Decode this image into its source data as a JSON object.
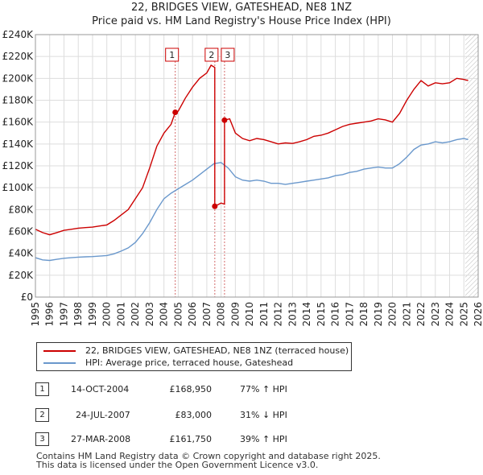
{
  "chart_data": {
    "type": "line",
    "title": "22, BRIDGES VIEW, GATESHEAD, NE8 1NZ",
    "subtitle": "Price paid vs. HM Land Registry's House Price Index (HPI)",
    "xlim": [
      1995,
      2026
    ],
    "ylim": [
      0,
      240000
    ],
    "x_ticks": [
      "1995",
      "1996",
      "1997",
      "1998",
      "1999",
      "2000",
      "2001",
      "2002",
      "2003",
      "2004",
      "2005",
      "2006",
      "2007",
      "2008",
      "2009",
      "2010",
      "2011",
      "2012",
      "2013",
      "2014",
      "2015",
      "2016",
      "2017",
      "2018",
      "2019",
      "2020",
      "2021",
      "2022",
      "2023",
      "2024",
      "2025",
      "2026"
    ],
    "y_ticks": [
      {
        "value": 0,
        "label": "£0"
      },
      {
        "value": 20000,
        "label": "£20K"
      },
      {
        "value": 40000,
        "label": "£40K"
      },
      {
        "value": 60000,
        "label": "£60K"
      },
      {
        "value": 80000,
        "label": "£80K"
      },
      {
        "value": 100000,
        "label": "£100K"
      },
      {
        "value": 120000,
        "label": "£120K"
      },
      {
        "value": 140000,
        "label": "£140K"
      },
      {
        "value": 160000,
        "label": "£160K"
      },
      {
        "value": 180000,
        "label": "£180K"
      },
      {
        "value": 200000,
        "label": "£200K"
      },
      {
        "value": 220000,
        "label": "£220K"
      },
      {
        "value": 240000,
        "label": "£240K"
      }
    ],
    "grid": true,
    "future_hatch_start": 2025.1,
    "series": [
      {
        "name": "22, BRIDGES VIEW, GATESHEAD, NE8 1NZ (terraced house)",
        "color": "#cc0000",
        "x": [
          1995,
          1995.5,
          1996,
          1996.5,
          1997,
          1997.5,
          1998,
          1998.5,
          1999,
          1999.5,
          2000,
          2000.5,
          2001,
          2001.5,
          2002,
          2002.5,
          2003,
          2003.5,
          2004,
          2004.5,
          2004.79,
          2004.79,
          2005,
          2005.5,
          2006,
          2006.5,
          2007,
          2007.3,
          2007.56,
          2007.56,
          2008,
          2008.24,
          2008.24,
          2008.6,
          2009,
          2009.5,
          2010,
          2010.5,
          2011,
          2011.5,
          2012,
          2012.5,
          2013,
          2013.5,
          2014,
          2014.5,
          2015,
          2015.5,
          2016,
          2016.5,
          2017,
          2017.5,
          2018,
          2018.5,
          2019,
          2019.5,
          2020,
          2020.5,
          2021,
          2021.5,
          2022,
          2022.5,
          2023,
          2023.5,
          2024,
          2024.5,
          2025,
          2025.3
        ],
        "y": [
          62000,
          59000,
          57000,
          59000,
          61000,
          62000,
          63000,
          63500,
          64000,
          65000,
          66000,
          70000,
          75000,
          80000,
          90000,
          100000,
          118000,
          138000,
          150000,
          158000,
          168950,
          168950,
          170000,
          182000,
          192000,
          200000,
          205000,
          212000,
          210000,
          83000,
          86000,
          85000,
          161750,
          163000,
          150000,
          145000,
          143000,
          145000,
          144000,
          142000,
          140000,
          141000,
          140500,
          142000,
          144000,
          147000,
          148000,
          150000,
          153000,
          156000,
          158000,
          159000,
          160000,
          161000,
          163000,
          162000,
          160000,
          168000,
          180000,
          190000,
          198000,
          193000,
          196000,
          195000,
          196000,
          200000,
          199000,
          198000
        ]
      },
      {
        "name": "HPI: Average price, terraced house, Gateshead",
        "color": "#6a98cc",
        "x": [
          1995,
          1995.5,
          1996,
          1996.5,
          1997,
          1997.5,
          1998,
          1998.5,
          1999,
          1999.5,
          2000,
          2000.5,
          2001,
          2001.5,
          2002,
          2002.5,
          2003,
          2003.5,
          2004,
          2004.5,
          2005,
          2005.5,
          2006,
          2006.5,
          2007,
          2007.5,
          2008,
          2008.5,
          2009,
          2009.5,
          2010,
          2010.5,
          2011,
          2011.5,
          2012,
          2012.5,
          2013,
          2013.5,
          2014,
          2014.5,
          2015,
          2015.5,
          2016,
          2016.5,
          2017,
          2017.5,
          2018,
          2018.5,
          2019,
          2019.5,
          2020,
          2020.5,
          2021,
          2021.5,
          2022,
          2022.5,
          2023,
          2023.5,
          2024,
          2024.5,
          2025,
          2025.3
        ],
        "y": [
          36000,
          34000,
          33500,
          34500,
          35500,
          36000,
          36500,
          36800,
          37000,
          37500,
          38000,
          39500,
          42000,
          45000,
          50000,
          58000,
          68000,
          80000,
          90000,
          95000,
          99000,
          103000,
          107000,
          112000,
          117000,
          122000,
          123000,
          118000,
          110000,
          107000,
          106000,
          107000,
          106000,
          104000,
          104000,
          103000,
          104000,
          105000,
          106000,
          107000,
          108000,
          109000,
          111000,
          112000,
          114000,
          115000,
          117000,
          118000,
          119000,
          118000,
          118000,
          122000,
          128000,
          135000,
          139000,
          140000,
          142000,
          141000,
          142000,
          144000,
          145000,
          144000
        ]
      }
    ],
    "markers": [
      {
        "label": "1",
        "x": 2004.79,
        "y": 168950
      },
      {
        "label": "2",
        "x": 2007.56,
        "y": 83000
      },
      {
        "label": "3",
        "x": 2008.24,
        "y": 161750
      }
    ]
  },
  "legend": {
    "red_label": "22, BRIDGES VIEW, GATESHEAD, NE8 1NZ (terraced house)",
    "blue_label": "HPI: Average price, terraced house, Gateshead"
  },
  "transactions": [
    {
      "num": "1",
      "date": "14-OCT-2004",
      "price": "£168,950",
      "hpi": "77% ↑ HPI"
    },
    {
      "num": "2",
      "date": "24-JUL-2007",
      "price": "£83,000",
      "hpi": "31% ↓ HPI"
    },
    {
      "num": "3",
      "date": "27-MAR-2008",
      "price": "£161,750",
      "hpi": "39% ↑ HPI"
    }
  ],
  "footer": {
    "line1": "Contains HM Land Registry data © Crown copyright and database right 2025.",
    "line2": "This data is licensed under the Open Government Licence v3.0."
  },
  "colors": {
    "red": "#cc0000",
    "blue": "#6a98cc",
    "grid": "#dddddd"
  }
}
